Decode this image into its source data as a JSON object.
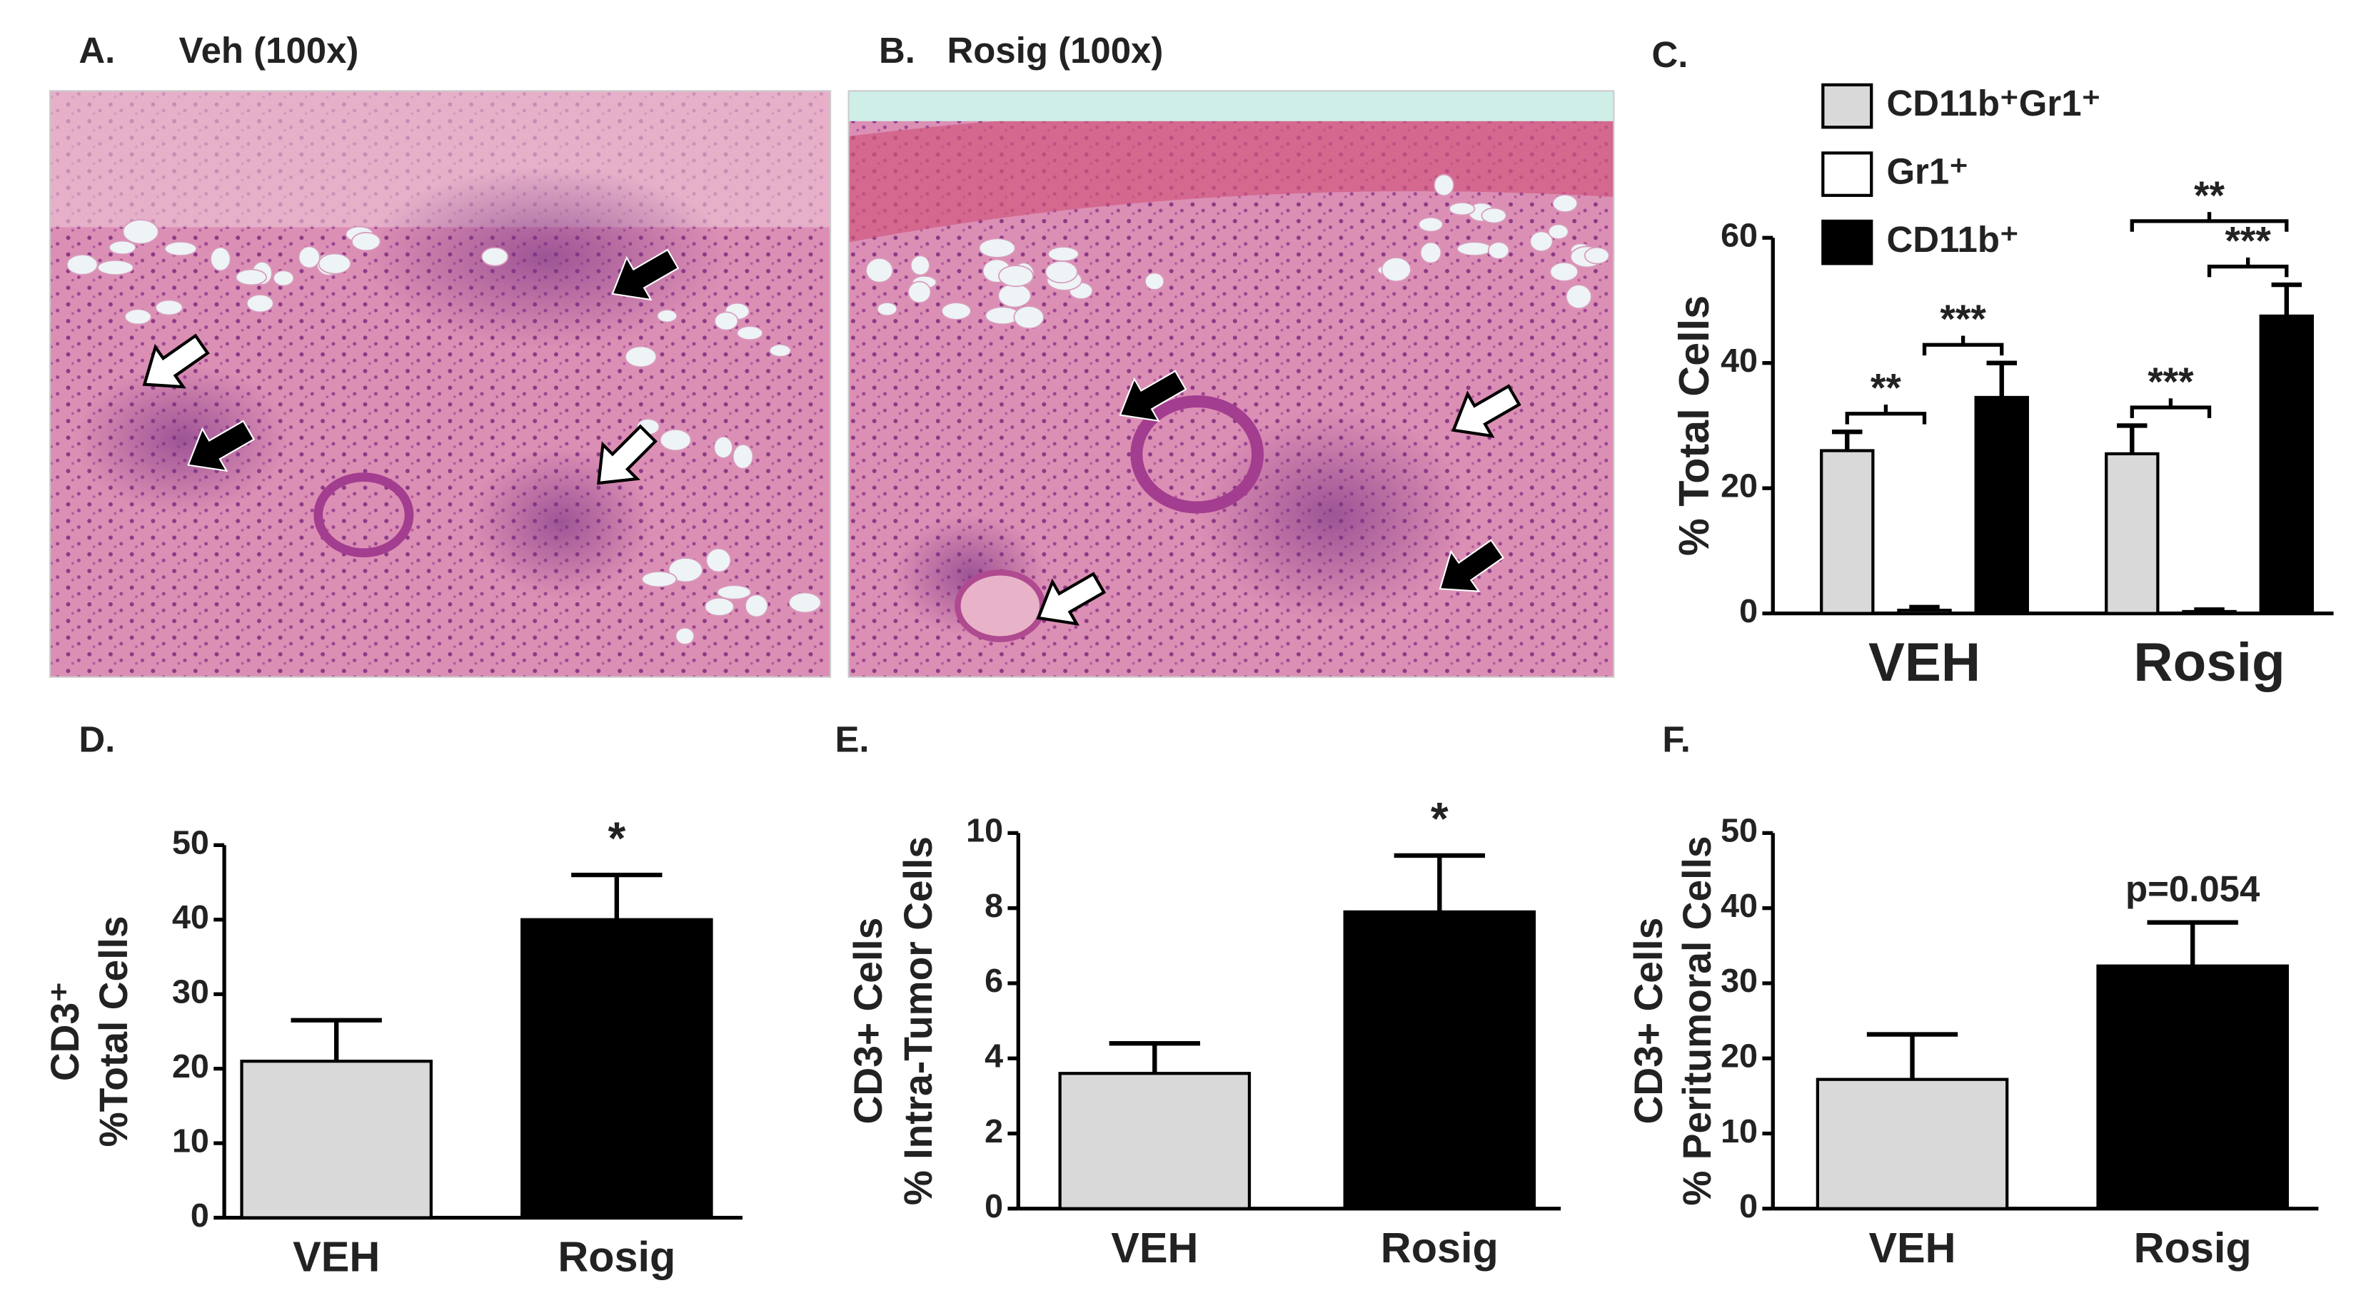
{
  "images": [
    {
      "label": "A.",
      "title": "Veh (100x)"
    },
    {
      "label": "B.",
      "title": "Rosig (100x)"
    }
  ],
  "chart_data": [
    {
      "type": "bar",
      "label": "C.",
      "categories": [
        "VEH",
        "Rosig"
      ],
      "series": [
        {
          "name": "CD11b⁺Gr1⁺",
          "color": "#d9d9d9",
          "values": [
            26,
            25.5
          ],
          "errors": [
            3,
            4.5
          ]
        },
        {
          "name": "Gr1⁺",
          "color": "#ffffff",
          "values": [
            0.5,
            0.3
          ],
          "errors": [
            0.5,
            0.3
          ]
        },
        {
          "name": "CD11b⁺",
          "color": "#000000",
          "values": [
            34.5,
            47.5
          ],
          "errors": [
            5.5,
            5
          ]
        }
      ],
      "ylabel": [
        "% Total Cells"
      ],
      "ylim": [
        0,
        60
      ],
      "yticks": [
        0,
        20,
        40,
        60
      ],
      "annotations": [
        "**",
        "***",
        "**",
        "***",
        "***"
      ]
    },
    {
      "type": "bar",
      "label": "D.",
      "categories": [
        "VEH",
        "Rosig"
      ],
      "values": [
        21,
        40
      ],
      "errors": [
        5.5,
        6
      ],
      "colors": [
        "#d9d9d9",
        "#000000"
      ],
      "ylabel": [
        "CD3⁺",
        "%Total Cells"
      ],
      "ylim": [
        0,
        50
      ],
      "yticks": [
        0,
        10,
        20,
        30,
        40,
        50
      ],
      "annotations": [
        "*"
      ]
    },
    {
      "type": "bar",
      "label": "E.",
      "categories": [
        "VEH",
        "Rosig"
      ],
      "values": [
        3.6,
        7.9
      ],
      "errors": [
        0.8,
        1.5
      ],
      "colors": [
        "#d9d9d9",
        "#000000"
      ],
      "ylabel": [
        "CD3+ Cells",
        "% Intra-Tumor Cells"
      ],
      "ylim": [
        0,
        10
      ],
      "yticks": [
        0,
        2,
        4,
        6,
        8,
        10
      ],
      "annotations": [
        "*"
      ]
    },
    {
      "type": "bar",
      "label": "F.",
      "categories": [
        "VEH",
        "Rosig"
      ],
      "values": [
        17.2,
        32.3
      ],
      "errors": [
        6,
        5.8
      ],
      "colors": [
        "#d9d9d9",
        "#000000"
      ],
      "ylabel": [
        "CD3+ Cells",
        "% Peritumoral Cells"
      ],
      "ylim": [
        0,
        50
      ],
      "yticks": [
        0,
        10,
        20,
        30,
        40,
        50
      ],
      "annotations": [
        "p=0.054"
      ]
    }
  ]
}
